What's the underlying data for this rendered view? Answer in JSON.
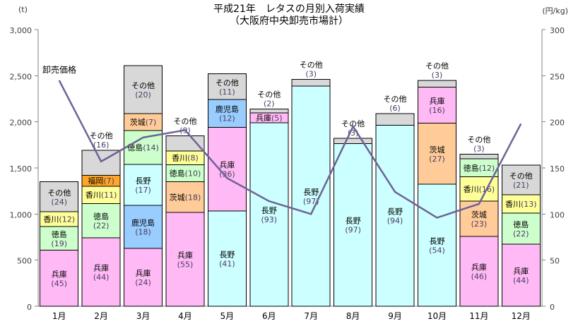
{
  "title": {
    "line1": "平成21年　レタスの月別入荷実績",
    "line2": "（大阪府中央卸売市場計）"
  },
  "chart_data": {
    "type": "bar",
    "subtype": "stacked-bar-with-line-overlay",
    "left_axis": {
      "unit": "(t)",
      "min": 0,
      "max": 3000,
      "tick_interval": 500,
      "tick_labels": [
        "3,000",
        "2,500",
        "2,000",
        "1,500",
        "1,000",
        "500",
        "0"
      ]
    },
    "right_axis": {
      "unit": "(円/kg)",
      "min": 0,
      "max": 300,
      "tick_interval": 50,
      "tick_labels": [
        "300",
        "250",
        "200",
        "150",
        "100",
        "50",
        "0"
      ]
    },
    "categories": [
      "1月",
      "2月",
      "3月",
      "4月",
      "5月",
      "6月",
      "7月",
      "8月",
      "9月",
      "10月",
      "11月",
      "12月"
    ],
    "bars": [
      {
        "month": "1月",
        "total": 1350,
        "segments": [
          {
            "name": "兵庫",
            "pct": 45,
            "label": "in2"
          },
          {
            "name": "徳島",
            "pct": 19,
            "label": "in2"
          },
          {
            "name": "香川",
            "pct": 12,
            "label": "in1"
          },
          {
            "name": "その他",
            "pct": 24,
            "label": "in2"
          }
        ]
      },
      {
        "month": "2月",
        "total": 1690,
        "segments": [
          {
            "name": "兵庫",
            "pct": 44,
            "label": "in2"
          },
          {
            "name": "徳島",
            "pct": 22,
            "label": "in2"
          },
          {
            "name": "香川",
            "pct": 11,
            "label": "in1"
          },
          {
            "name": "福岡",
            "pct": 7,
            "label": "in1"
          },
          {
            "name": "その他",
            "pct": 16,
            "label": "out2"
          }
        ]
      },
      {
        "month": "3月",
        "total": 2610,
        "segments": [
          {
            "name": "兵庫",
            "pct": 24,
            "label": "in2"
          },
          {
            "name": "鹿児島",
            "pct": 18,
            "label": "in2"
          },
          {
            "name": "長野",
            "pct": 17,
            "label": "in2"
          },
          {
            "name": "徳島",
            "pct": 14,
            "label": "in1"
          },
          {
            "name": "茨城",
            "pct": 7,
            "label": "in1"
          },
          {
            "name": "その他",
            "pct": 20,
            "label": "in2"
          }
        ]
      },
      {
        "month": "4月",
        "total": 1850,
        "segments": [
          {
            "name": "兵庫",
            "pct": 55,
            "label": "in2"
          },
          {
            "name": "茨城",
            "pct": 18,
            "label": "in1"
          },
          {
            "name": "徳島",
            "pct": 10,
            "label": "in1"
          },
          {
            "name": "香川",
            "pct": 8,
            "label": "in1"
          },
          {
            "name": "その他",
            "pct": 9,
            "label": "out2"
          }
        ]
      },
      {
        "month": "5月",
        "total": 2520,
        "segments": [
          {
            "name": "長野",
            "pct": 41,
            "label": "in2"
          },
          {
            "name": "兵庫",
            "pct": 36,
            "label": "in2"
          },
          {
            "name": "鹿児島",
            "pct": 12,
            "label": "in2"
          },
          {
            "name": "その他",
            "pct": 11,
            "label": "in2"
          }
        ]
      },
      {
        "month": "6月",
        "total": 2140,
        "segments": [
          {
            "name": "長野",
            "pct": 93,
            "label": "in2"
          },
          {
            "name": "兵庫",
            "pct": 5,
            "label": "in1"
          },
          {
            "name": "その他",
            "pct": 2,
            "label": "out2"
          }
        ]
      },
      {
        "month": "7月",
        "total": 2460,
        "segments": [
          {
            "name": "長野",
            "pct": 97,
            "label": "in2"
          },
          {
            "name": "その他",
            "pct": 3,
            "label": "out2"
          }
        ]
      },
      {
        "month": "8月",
        "total": 1820,
        "segments": [
          {
            "name": "長野",
            "pct": 97,
            "label": "in2"
          },
          {
            "name": "その他",
            "pct": 3,
            "label": "out2"
          }
        ]
      },
      {
        "month": "9月",
        "total": 2090,
        "segments": [
          {
            "name": "長野",
            "pct": 94,
            "label": "in2"
          },
          {
            "name": "その他",
            "pct": 6,
            "label": "out2"
          }
        ]
      },
      {
        "month": "10月",
        "total": 2450,
        "segments": [
          {
            "name": "長野",
            "pct": 54,
            "label": "in2"
          },
          {
            "name": "茨城",
            "pct": 27,
            "label": "in2"
          },
          {
            "name": "兵庫",
            "pct": 16,
            "label": "in2"
          },
          {
            "name": "その他",
            "pct": 3,
            "label": "out2"
          }
        ]
      },
      {
        "month": "11月",
        "total": 1650,
        "segments": [
          {
            "name": "兵庫",
            "pct": 46,
            "label": "in2"
          },
          {
            "name": "茨城",
            "pct": 23,
            "label": "in2"
          },
          {
            "name": "香川",
            "pct": 16,
            "label": "in1"
          },
          {
            "name": "徳島",
            "pct": 12,
            "label": "in1"
          },
          {
            "name": "その他",
            "pct": 3,
            "label": "out2"
          }
        ]
      },
      {
        "month": "12月",
        "total": 1530,
        "segments": [
          {
            "name": "兵庫",
            "pct": 44,
            "label": "in2"
          },
          {
            "name": "徳島",
            "pct": 22,
            "label": "in2"
          },
          {
            "name": "香川",
            "pct": 13,
            "label": "in1"
          },
          {
            "name": "その他",
            "pct": 21,
            "label": "in2"
          }
        ]
      }
    ],
    "line_series": {
      "name": "卸売価格",
      "values": [
        245,
        157,
        183,
        191,
        139,
        114,
        100,
        195,
        124,
        96,
        111,
        198
      ],
      "color": "#6f6396"
    },
    "region_colors": {
      "兵庫": "#ffb9f5",
      "徳島": "#ccffcc",
      "香川": "#ffff99",
      "福岡": "#ffa629",
      "その他": "#d8d8d8",
      "茨城": "#ffcc99",
      "長野": "#ccffff",
      "鹿児島": "#99ccff"
    },
    "label_colors": {
      "name": "#000000",
      "value": "#4c3b63"
    },
    "axis_color": "#808080",
    "grid": "off",
    "legend": "none"
  }
}
